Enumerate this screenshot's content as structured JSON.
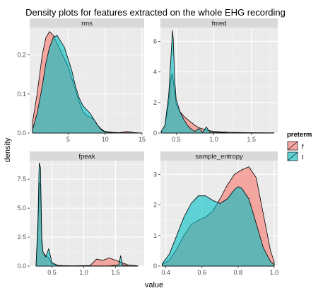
{
  "chart_data": {
    "type": "area",
    "title": "Density plots for features extracted on the whole EHG recording",
    "xlabel": "value",
    "ylabel": "density",
    "legend": {
      "title": "preterm",
      "placement": "right",
      "entries": [
        {
          "label": "f",
          "color": "#F8766D"
        },
        {
          "label": "t",
          "color": "#00BFC4"
        }
      ]
    },
    "grid": true,
    "panels": [
      {
        "name": "rms",
        "xlim": [
          -0.2,
          15.3
        ],
        "ylim": [
          0,
          0.27
        ],
        "xticks": [
          5,
          10,
          15
        ],
        "xtick_labels": [
          "5",
          "10",
          "15"
        ],
        "yticks": [
          0,
          0.1,
          0.2
        ],
        "ytick_labels": [
          "0.0",
          "0.1",
          "0.2"
        ],
        "series": [
          {
            "name": "f",
            "x": [
              0.2,
              0.8,
              1.5,
              2.0,
              2.5,
              3.0,
              3.5,
              4.0,
              5.0,
              5.5,
              6.0,
              6.5,
              7.0,
              7.5,
              8.0,
              8.5,
              9.0,
              9.5,
              10.0,
              11.0,
              12.0,
              13.0,
              14.0,
              15.0
            ],
            "y": [
              0.03,
              0.1,
              0.2,
              0.245,
              0.26,
              0.25,
              0.23,
              0.21,
              0.17,
              0.14,
              0.11,
              0.08,
              0.055,
              0.045,
              0.04,
              0.035,
              0.02,
              0.01,
              0.004,
              0.002,
              0.001,
              0.004,
              0.001,
              0
            ]
          },
          {
            "name": "t",
            "x": [
              0.2,
              0.8,
              1.5,
              2.0,
              2.5,
              3.0,
              3.5,
              4.0,
              4.5,
              5.0,
              5.5,
              6.0,
              6.5,
              7.0,
              7.5,
              8.0,
              8.5,
              9.0,
              9.5,
              10.0,
              11.0,
              15.0
            ],
            "y": [
              0.01,
              0.05,
              0.12,
              0.18,
              0.22,
              0.245,
              0.25,
              0.235,
              0.22,
              0.19,
              0.16,
              0.12,
              0.09,
              0.07,
              0.06,
              0.05,
              0.035,
              0.02,
              0.008,
              0.003,
              0.001,
              0
            ]
          }
        ]
      },
      {
        "name": "fmed",
        "xlim": [
          0.29,
          1.85
        ],
        "ylim": [
          0,
          6.9
        ],
        "xticks": [
          0.5,
          1.0,
          1.5
        ],
        "xtick_labels": [
          "0.5",
          "1.0",
          "1.5"
        ],
        "yticks": [
          0,
          2,
          4,
          6
        ],
        "ytick_labels": [
          "0",
          "2",
          "4",
          "6"
        ],
        "series": [
          {
            "name": "f",
            "x": [
              0.3,
              0.35,
              0.4,
              0.43,
              0.45,
              0.47,
              0.5,
              0.55,
              0.6,
              0.7,
              0.75,
              0.8,
              0.9,
              1.0,
              1.2,
              1.4,
              1.6,
              1.8
            ],
            "y": [
              0.1,
              0.5,
              2.0,
              3.6,
              3.9,
              3.0,
              1.9,
              1.4,
              1.1,
              0.7,
              0.5,
              0.35,
              0.2,
              0.1,
              0.05,
              0.03,
              0.02,
              0.01
            ]
          },
          {
            "name": "t",
            "x": [
              0.3,
              0.35,
              0.4,
              0.43,
              0.45,
              0.46,
              0.48,
              0.5,
              0.55,
              0.6,
              0.65,
              0.7,
              0.75,
              0.8,
              0.85,
              0.9,
              0.95,
              1.0,
              1.2,
              1.8
            ],
            "y": [
              0.1,
              0.5,
              2.5,
              5.0,
              6.7,
              6.2,
              3.5,
              2.2,
              1.4,
              0.9,
              0.5,
              0.25,
              0.1,
              0.3,
              0.05,
              0.4,
              0.05,
              0.05,
              0.02,
              0.01
            ]
          }
        ]
      },
      {
        "name": "fpeak",
        "xlim": [
          0.15,
          1.95
        ],
        "ylim": [
          0,
          9.1
        ],
        "xticks": [
          0.5,
          1.0,
          1.5
        ],
        "xtick_labels": [
          "0.5",
          "1.0",
          "1.5"
        ],
        "yticks": [
          0,
          2.5,
          5,
          7.5
        ],
        "ytick_labels": [
          "0.0",
          "2.5",
          "5.0",
          "7.5"
        ],
        "series": [
          {
            "name": "f",
            "x": [
              0.25,
              0.28,
              0.3,
              0.32,
              0.34,
              0.36,
              0.4,
              0.45,
              0.5,
              0.6,
              0.8,
              1.1,
              1.2,
              1.3,
              1.4,
              1.5,
              1.6,
              1.7,
              1.85
            ],
            "y": [
              0.1,
              3.0,
              7.2,
              7.0,
              2.0,
              1.2,
              0.9,
              0.7,
              0.2,
              0.05,
              0.02,
              0.05,
              0.6,
              0.5,
              0.7,
              0.5,
              0.3,
              0.1,
              0.02
            ]
          },
          {
            "name": "t",
            "x": [
              0.25,
              0.28,
              0.3,
              0.32,
              0.34,
              0.36,
              0.4,
              0.45,
              0.5,
              0.6,
              0.8,
              1.4,
              1.55,
              1.58,
              1.61,
              1.7,
              1.85
            ],
            "y": [
              0.1,
              4.0,
              8.9,
              8.5,
              2.5,
              1.2,
              0.8,
              1.5,
              0.3,
              0.05,
              0.01,
              0.01,
              0.1,
              0.9,
              0.1,
              0.01,
              0.0
            ]
          }
        ]
      },
      {
        "name": "sample_entropy",
        "xlim": [
          0.37,
          1.02
        ],
        "ylim": [
          0,
          3.45
        ],
        "xticks": [
          0.4,
          0.6,
          0.8,
          1.0
        ],
        "xtick_labels": [
          "0.4",
          "0.6",
          "0.8",
          "1.0"
        ],
        "yticks": [
          0,
          1,
          2,
          3
        ],
        "ytick_labels": [
          "0",
          "1",
          "2",
          "3"
        ],
        "series": [
          {
            "name": "f",
            "x": [
              0.38,
              0.42,
              0.46,
              0.5,
              0.54,
              0.58,
              0.62,
              0.66,
              0.7,
              0.74,
              0.78,
              0.82,
              0.86,
              0.9,
              0.94,
              0.98,
              1.0
            ],
            "y": [
              0.05,
              0.2,
              0.55,
              1.0,
              1.35,
              1.5,
              1.6,
              1.8,
              2.2,
              2.65,
              3.0,
              3.15,
              3.25,
              2.9,
              1.7,
              0.5,
              0.15
            ]
          },
          {
            "name": "t",
            "x": [
              0.38,
              0.42,
              0.46,
              0.5,
              0.54,
              0.58,
              0.62,
              0.66,
              0.7,
              0.74,
              0.78,
              0.8,
              0.82,
              0.86,
              0.9,
              0.94,
              0.98,
              1.0
            ],
            "y": [
              0.08,
              0.4,
              1.0,
              1.6,
              2.05,
              2.3,
              2.3,
              2.15,
              2.05,
              2.2,
              2.5,
              2.6,
              2.55,
              2.2,
              1.4,
              0.6,
              0.15,
              0.05
            ]
          }
        ]
      }
    ]
  }
}
